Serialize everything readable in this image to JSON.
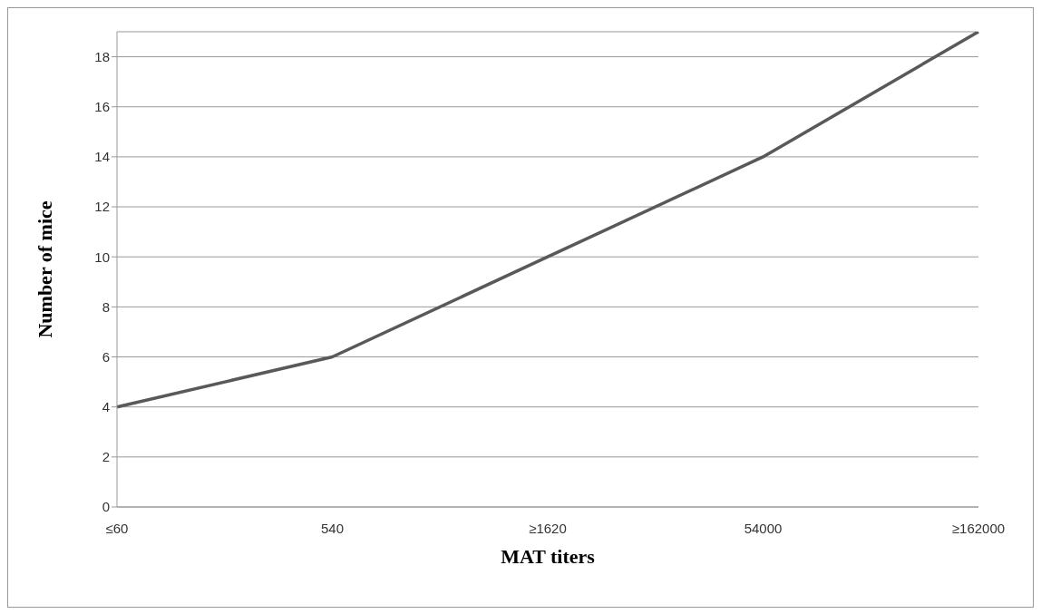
{
  "chart_data": {
    "type": "line",
    "xlabel": "MAT titers",
    "ylabel": "Number of mice",
    "categories": [
      "≤60",
      "540",
      "≥1620",
      "54000",
      "≥162000"
    ],
    "series": [
      {
        "color": "#595959",
        "values": [
          4,
          6,
          10,
          14,
          19
        ]
      }
    ],
    "ylim": [
      0,
      19
    ],
    "yticks": [
      0,
      2,
      4,
      6,
      8,
      10,
      12,
      14,
      16,
      18
    ],
    "grid": "y",
    "legend": false,
    "marker": "none",
    "line_style": "solid"
  }
}
